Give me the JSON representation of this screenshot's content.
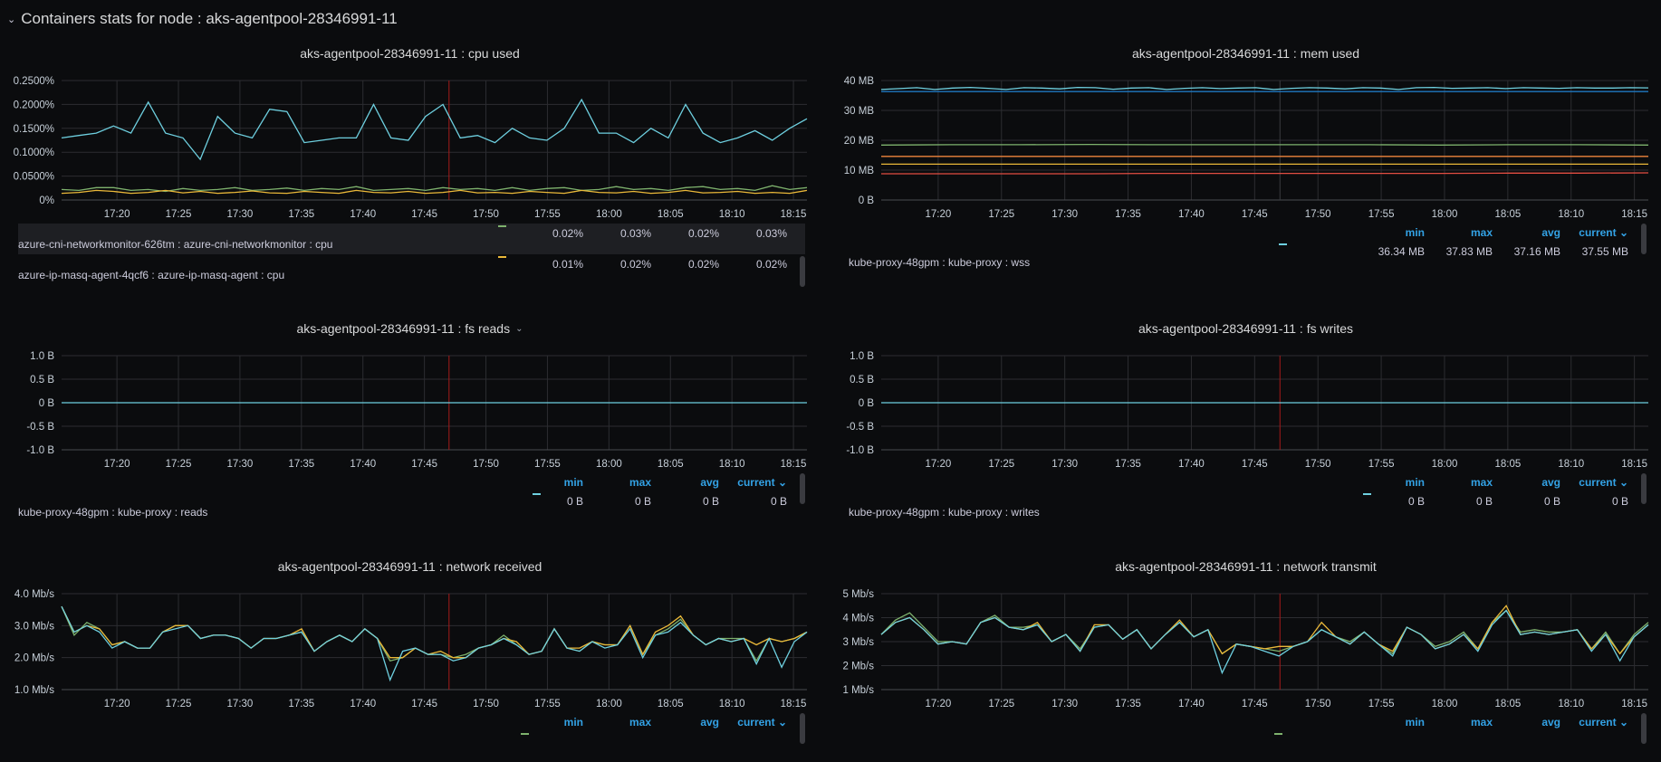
{
  "row_title": "Containers stats for node : aks-agentpool-28346991-11",
  "xticks": [
    "17:20",
    "17:25",
    "17:30",
    "17:35",
    "17:40",
    "17:45",
    "17:50",
    "17:55",
    "18:00",
    "18:05",
    "18:10",
    "18:15"
  ],
  "annotation_time": "17:47",
  "colors": {
    "cyan": "#6ed0e0",
    "green": "#7eb26d",
    "yellow": "#eab839",
    "blue": "#1f78c1",
    "orange": "#ef843c",
    "red": "#e24d42",
    "annotation": "#a51a1a",
    "legend_header": "#33a2e5"
  },
  "legend_headers": {
    "min": "min",
    "max": "max",
    "avg": "avg",
    "current": "current ⌄"
  },
  "panels": {
    "cpu": {
      "title": "aks-agentpool-28346991-11 : cpu used",
      "chart_data": {
        "type": "line",
        "ylim": [
          0,
          0.25
        ],
        "yticks": [
          {
            "v": 0,
            "l": "0%"
          },
          {
            "v": 0.05,
            "l": "0.0500%"
          },
          {
            "v": 0.1,
            "l": "0.1000%"
          },
          {
            "v": 0.15,
            "l": "0.1500%"
          },
          {
            "v": 0.2,
            "l": "0.2000%"
          },
          {
            "v": 0.25,
            "l": "0.2500%"
          }
        ],
        "series": [
          {
            "name": "cyan",
            "color": "#6ed0e0",
            "values": [
              0.13,
              0.135,
              0.14,
              0.155,
              0.14,
              0.205,
              0.14,
              0.13,
              0.085,
              0.175,
              0.14,
              0.13,
              0.19,
              0.185,
              0.12,
              0.125,
              0.13,
              0.13,
              0.2,
              0.13,
              0.125,
              0.175,
              0.2,
              0.13,
              0.135,
              0.12,
              0.15,
              0.13,
              0.125,
              0.15,
              0.21,
              0.14,
              0.14,
              0.12,
              0.15,
              0.13,
              0.2,
              0.14,
              0.12,
              0.13,
              0.145,
              0.125,
              0.15,
              0.17
            ]
          },
          {
            "name": "green",
            "color": "#7eb26d",
            "values": [
              0.022,
              0.02,
              0.026,
              0.026,
              0.02,
              0.022,
              0.018,
              0.024,
              0.02,
              0.022,
              0.026,
              0.02,
              0.022,
              0.025,
              0.02,
              0.024,
              0.022,
              0.028,
              0.02,
              0.022,
              0.024,
              0.02,
              0.026,
              0.022,
              0.024,
              0.02,
              0.026,
              0.02,
              0.024,
              0.026,
              0.02,
              0.022,
              0.028,
              0.022,
              0.024,
              0.02,
              0.026,
              0.028,
              0.022,
              0.024,
              0.02,
              0.03,
              0.022,
              0.026
            ]
          },
          {
            "name": "yellow",
            "color": "#eab839",
            "values": [
              0.014,
              0.016,
              0.02,
              0.018,
              0.014,
              0.016,
              0.02,
              0.015,
              0.018,
              0.014,
              0.016,
              0.019,
              0.015,
              0.014,
              0.018,
              0.016,
              0.014,
              0.02,
              0.016,
              0.015,
              0.018,
              0.014,
              0.016,
              0.02,
              0.015,
              0.016,
              0.014,
              0.018,
              0.016,
              0.014,
              0.02,
              0.016,
              0.015,
              0.018,
              0.014,
              0.016,
              0.02,
              0.015,
              0.016,
              0.018,
              0.014,
              0.016,
              0.014,
              0.02
            ]
          }
        ]
      },
      "legend": {
        "show_header": false,
        "rows": [
          {
            "name": "azure-cni-networkmonitor-626tm : azure-cni-networkmonitor : cpu",
            "min": "0.02%",
            "max": "0.03%",
            "avg": "0.02%",
            "current": "0.03%",
            "color": "#7eb26d"
          },
          {
            "name": "azure-ip-masq-agent-4qcf6 : azure-ip-masq-agent : cpu",
            "min": "0.01%",
            "max": "0.02%",
            "avg": "0.02%",
            "current": "0.02%",
            "color": "#eab839"
          }
        ]
      }
    },
    "mem": {
      "title": "aks-agentpool-28346991-11 : mem used",
      "chart_data": {
        "type": "line",
        "ylim": [
          0,
          40
        ],
        "yticks": [
          {
            "v": 0,
            "l": "0 B"
          },
          {
            "v": 10,
            "l": "10 MB"
          },
          {
            "v": 20,
            "l": "20 MB"
          },
          {
            "v": 30,
            "l": "30 MB"
          },
          {
            "v": 40,
            "l": "40 MB"
          }
        ],
        "series": [
          {
            "name": "cyan",
            "color": "#6ed0e0",
            "values": [
              37.0,
              37.3,
              37.6,
              37.0,
              37.5,
              37.7,
              37.4,
              37.0,
              37.6,
              37.5,
              37.2,
              37.7,
              37.6,
              37.1,
              37.5,
              37.6,
              37.0,
              37.4,
              37.6,
              37.3,
              37.5,
              37.6,
              37.0,
              37.4,
              37.6,
              37.5,
              37.2,
              37.6,
              37.5,
              37.0,
              37.6,
              37.7,
              37.4,
              37.5,
              37.6,
              37.3,
              37.6,
              37.5,
              37.4,
              37.6,
              37.5,
              37.5,
              37.6,
              37.55
            ]
          },
          {
            "name": "blue",
            "color": "#1f78c1",
            "values": [
              36.3,
              36.3,
              36.3,
              36.3,
              36.3,
              36.3,
              36.3,
              36.3,
              36.3,
              36.3,
              36.3,
              36.3
            ]
          },
          {
            "name": "green",
            "color": "#7eb26d",
            "values": [
              18.4,
              18.5,
              18.5,
              18.6,
              18.5,
              18.5,
              18.5,
              18.5,
              18.4,
              18.5,
              18.5,
              18.4
            ]
          },
          {
            "name": "orange",
            "color": "#ef843c",
            "values": [
              14.6,
              14.6,
              14.6,
              14.6,
              14.6,
              14.6,
              14.6,
              14.6,
              14.6,
              14.6,
              14.6,
              14.6
            ]
          },
          {
            "name": "yellow",
            "color": "#eab839",
            "values": [
              12.0,
              12.0,
              12.0,
              12.0,
              12.0,
              12.0,
              12.0,
              12.0,
              12.0,
              12.0,
              12.0,
              12.0
            ]
          },
          {
            "name": "red",
            "color": "#e24d42",
            "values": [
              8.8,
              8.8,
              8.8,
              8.8,
              8.9,
              8.9,
              8.9,
              8.9,
              8.9,
              9.0,
              9.0,
              9.1
            ]
          }
        ]
      },
      "legend": {
        "show_header": true,
        "rows": [
          {
            "name": "kube-proxy-48gpm : kube-proxy : wss",
            "min": "36.34 MB",
            "max": "37.83 MB",
            "avg": "37.16 MB",
            "current": "37.55 MB",
            "color": "#6ed0e0"
          }
        ]
      }
    },
    "fsreads": {
      "title": "aks-agentpool-28346991-11 : fs reads",
      "menu": "⌄",
      "chart_data": {
        "type": "line",
        "ylim": [
          -1,
          1
        ],
        "yticks": [
          {
            "v": -1,
            "l": "-1.0 B"
          },
          {
            "v": -0.5,
            "l": "-0.5 B"
          },
          {
            "v": 0,
            "l": "0 B"
          },
          {
            "v": 0.5,
            "l": "0.5 B"
          },
          {
            "v": 1,
            "l": "1.0 B"
          }
        ],
        "series": [
          {
            "name": "cyan",
            "color": "#6ed0e0",
            "values": [
              0,
              0
            ]
          }
        ]
      },
      "legend": {
        "show_header": true,
        "rows": [
          {
            "name": "kube-proxy-48gpm : kube-proxy : reads",
            "min": "0 B",
            "max": "0 B",
            "avg": "0 B",
            "current": "0 B",
            "color": "#6ed0e0"
          }
        ]
      }
    },
    "fswrites": {
      "title": "aks-agentpool-28346991-11 : fs writes",
      "chart_data": {
        "type": "line",
        "ylim": [
          -1,
          1
        ],
        "yticks": [
          {
            "v": -1,
            "l": "-1.0 B"
          },
          {
            "v": -0.5,
            "l": "-0.5 B"
          },
          {
            "v": 0,
            "l": "0 B"
          },
          {
            "v": 0.5,
            "l": "0.5 B"
          },
          {
            "v": 1,
            "l": "1.0 B"
          }
        ],
        "series": [
          {
            "name": "cyan",
            "color": "#6ed0e0",
            "values": [
              0,
              0
            ]
          }
        ]
      },
      "legend": {
        "show_header": true,
        "rows": [
          {
            "name": "kube-proxy-48gpm : kube-proxy : writes",
            "min": "0 B",
            "max": "0 B",
            "avg": "0 B",
            "current": "0 B",
            "color": "#6ed0e0"
          }
        ]
      }
    },
    "netrx": {
      "title": "aks-agentpool-28346991-11 : network received",
      "chart_data": {
        "type": "line",
        "ylim": [
          1,
          4
        ],
        "yticks": [
          {
            "v": 1,
            "l": "1.0 Mb/s"
          },
          {
            "v": 2,
            "l": "2.0 Mb/s"
          },
          {
            "v": 3,
            "l": "3.0 Mb/s"
          },
          {
            "v": 4,
            "l": "4.0 Mb/s"
          }
        ],
        "series": [
          {
            "name": "green",
            "color": "#7eb26d",
            "values": [
              3.6,
              2.7,
              3.1,
              2.9,
              2.4,
              2.5,
              2.3,
              2.3,
              2.8,
              3.0,
              3.0,
              2.6,
              2.7,
              2.7,
              2.6,
              2.3,
              2.6,
              2.6,
              2.7,
              2.8,
              2.2,
              2.5,
              2.7,
              2.5,
              2.9,
              2.6,
              1.9,
              2.0,
              2.3,
              2.1,
              2.1,
              2.0,
              2.1,
              2.3,
              2.4,
              2.7,
              2.4,
              2.1,
              2.2,
              2.9,
              2.3,
              2.2,
              2.5,
              2.4,
              2.4,
              3.0,
              2.1,
              2.7,
              2.9,
              3.2,
              2.7,
              2.4,
              2.6,
              2.6,
              2.6,
              1.9,
              2.6,
              2.5,
              2.6,
              2.8
            ]
          },
          {
            "name": "yellow",
            "color": "#eab839",
            "values": [
              3.6,
              2.8,
              3.0,
              2.9,
              2.4,
              2.5,
              2.3,
              2.3,
              2.8,
              3.0,
              3.0,
              2.6,
              2.7,
              2.7,
              2.6,
              2.3,
              2.6,
              2.6,
              2.7,
              2.9,
              2.2,
              2.5,
              2.7,
              2.5,
              2.9,
              2.6,
              2.0,
              2.0,
              2.3,
              2.1,
              2.2,
              2.0,
              2.0,
              2.3,
              2.4,
              2.6,
              2.5,
              2.1,
              2.2,
              2.9,
              2.3,
              2.3,
              2.5,
              2.4,
              2.4,
              3.0,
              2.1,
              2.8,
              3.0,
              3.3,
              2.7,
              2.4,
              2.6,
              2.5,
              2.6,
              2.4,
              2.6,
              2.5,
              2.6,
              2.8
            ]
          },
          {
            "name": "cyan",
            "color": "#6ed0e0",
            "values": [
              3.6,
              2.8,
              3.0,
              2.8,
              2.3,
              2.5,
              2.3,
              2.3,
              2.8,
              2.9,
              3.0,
              2.6,
              2.7,
              2.7,
              2.6,
              2.3,
              2.6,
              2.6,
              2.7,
              2.8,
              2.2,
              2.5,
              2.7,
              2.5,
              2.9,
              2.6,
              1.3,
              2.2,
              2.3,
              2.1,
              2.1,
              1.9,
              2.0,
              2.3,
              2.4,
              2.6,
              2.4,
              2.1,
              2.2,
              2.9,
              2.3,
              2.2,
              2.5,
              2.3,
              2.4,
              2.9,
              2.0,
              2.7,
              2.8,
              3.1,
              2.7,
              2.4,
              2.6,
              2.5,
              2.6,
              1.8,
              2.6,
              1.7,
              2.5,
              2.8
            ]
          }
        ]
      },
      "legend": {
        "show_header": true,
        "rows": [
          {
            "color": "#7eb26d"
          }
        ]
      }
    },
    "nettx": {
      "title": "aks-agentpool-28346991-11 : network transmit",
      "chart_data": {
        "type": "line",
        "ylim": [
          1,
          5
        ],
        "yticks": [
          {
            "v": 1,
            "l": "1 Mb/s"
          },
          {
            "v": 2,
            "l": "2 Mb/s"
          },
          {
            "v": 3,
            "l": "3 Mb/s"
          },
          {
            "v": 4,
            "l": "4 Mb/s"
          },
          {
            "v": 5,
            "l": "5 Mb/s"
          }
        ],
        "series": [
          {
            "name": "green",
            "color": "#7eb26d",
            "values": [
              3.3,
              3.9,
              4.2,
              3.6,
              3.0,
              3.0,
              2.9,
              3.8,
              4.1,
              3.6,
              3.6,
              3.7,
              3.0,
              3.3,
              2.7,
              3.6,
              3.7,
              3.1,
              3.5,
              2.7,
              3.3,
              3.8,
              3.2,
              3.5,
              2.5,
              2.9,
              2.8,
              2.7,
              2.6,
              2.8,
              3.0,
              3.5,
              3.2,
              3.0,
              3.4,
              2.9,
              2.5,
              3.6,
              3.3,
              2.8,
              3.0,
              3.4,
              2.7,
              3.8,
              4.3,
              3.4,
              3.5,
              3.4,
              3.4,
              3.5,
              2.7,
              3.4,
              2.5,
              3.3,
              3.8
            ]
          },
          {
            "name": "yellow",
            "color": "#eab839",
            "values": [
              3.3,
              3.8,
              4.0,
              3.5,
              2.9,
              3.0,
              2.9,
              3.8,
              4.0,
              3.6,
              3.5,
              3.8,
              3.0,
              3.3,
              2.6,
              3.7,
              3.7,
              3.1,
              3.5,
              2.7,
              3.3,
              3.9,
              3.2,
              3.5,
              2.5,
              2.9,
              2.8,
              2.7,
              2.8,
              2.8,
              3.0,
              3.8,
              3.2,
              2.9,
              3.4,
              2.9,
              2.6,
              3.6,
              3.3,
              2.7,
              2.9,
              3.3,
              2.7,
              3.8,
              4.5,
              3.3,
              3.4,
              3.3,
              3.4,
              3.5,
              2.7,
              3.3,
              2.5,
              3.2,
              3.7
            ]
          },
          {
            "name": "cyan",
            "color": "#6ed0e0",
            "values": [
              3.3,
              3.8,
              4.0,
              3.5,
              2.9,
              3.0,
              2.9,
              3.8,
              4.0,
              3.6,
              3.5,
              3.7,
              3.0,
              3.3,
              2.6,
              3.6,
              3.7,
              3.1,
              3.5,
              2.7,
              3.3,
              3.8,
              3.2,
              3.5,
              1.7,
              2.9,
              2.8,
              2.6,
              2.4,
              2.8,
              3.0,
              3.5,
              3.2,
              2.9,
              3.4,
              2.9,
              2.4,
              3.6,
              3.3,
              2.7,
              2.9,
              3.3,
              2.6,
              3.7,
              4.3,
              3.3,
              3.4,
              3.3,
              3.4,
              3.5,
              2.6,
              3.3,
              2.2,
              3.2,
              3.7
            ]
          }
        ]
      },
      "legend": {
        "show_header": true,
        "rows": [
          {
            "color": "#7eb26d"
          }
        ]
      }
    }
  }
}
